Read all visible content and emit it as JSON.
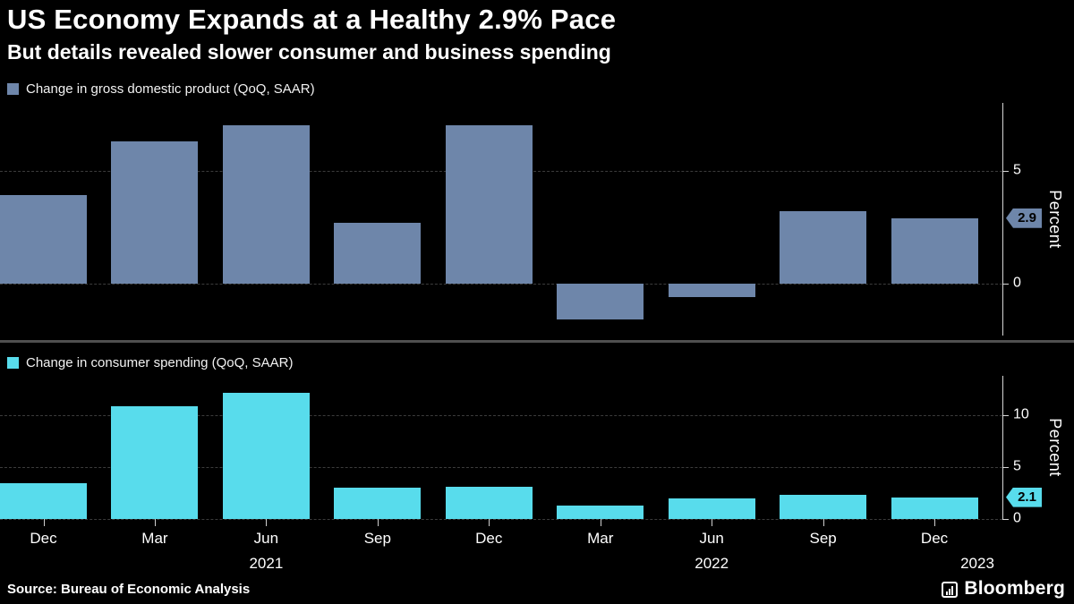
{
  "header": {
    "title": "US Economy Expands at a Healthy 2.9% Pace",
    "subtitle": "But details revealed slower consumer and business spending"
  },
  "source": "Source: Bureau of Economic Analysis",
  "brand": "Bloomberg",
  "colors": {
    "gdp_bar": "#6E86AA",
    "consumer_bar": "#58DCEC",
    "background": "#000000",
    "grid": "#3c3c3c",
    "axis": "#d6d6d6",
    "divider": "#4f4f4f",
    "text": "#ffffff"
  },
  "chart_data": [
    {
      "type": "bar",
      "title": "Change in gross domestic product (QoQ, SAAR)",
      "categories": [
        "Dec",
        "Mar",
        "Jun",
        "Sep",
        "Dec",
        "Mar",
        "Jun",
        "Sep",
        "Dec"
      ],
      "values": [
        3.9,
        6.3,
        7.0,
        2.7,
        7.0,
        -1.6,
        -0.6,
        3.2,
        2.9
      ],
      "ylabel": "Percent",
      "yticks": [
        5,
        0
      ],
      "ylim": [
        -2.3,
        8.0
      ],
      "last_value_label": "2.9",
      "color": "#6E86AA",
      "grid": "dashed-horizontal",
      "legend_position": "top-left"
    },
    {
      "type": "bar",
      "title": "Change in consumer spending (QoQ, SAAR)",
      "categories": [
        "Dec",
        "Mar",
        "Jun",
        "Sep",
        "Dec",
        "Mar",
        "Jun",
        "Sep",
        "Dec"
      ],
      "values": [
        3.4,
        10.8,
        12.1,
        3.0,
        3.1,
        1.3,
        2.0,
        2.3,
        2.1
      ],
      "ylabel": "Percent",
      "yticks": [
        10,
        5,
        0
      ],
      "ylim": [
        0,
        13.75
      ],
      "last_value_label": "2.1",
      "color": "#58DCEC",
      "grid": "dashed-horizontal",
      "legend_position": "top-left"
    }
  ],
  "x_axis": {
    "labels": [
      "Dec",
      "Mar",
      "Jun",
      "Sep",
      "Dec",
      "Mar",
      "Jun",
      "Sep",
      "Dec"
    ],
    "year_labels": [
      {
        "text": "2021",
        "index": 2
      },
      {
        "text": "2022",
        "index": 6
      },
      {
        "text": "2023",
        "index": 8
      }
    ]
  }
}
